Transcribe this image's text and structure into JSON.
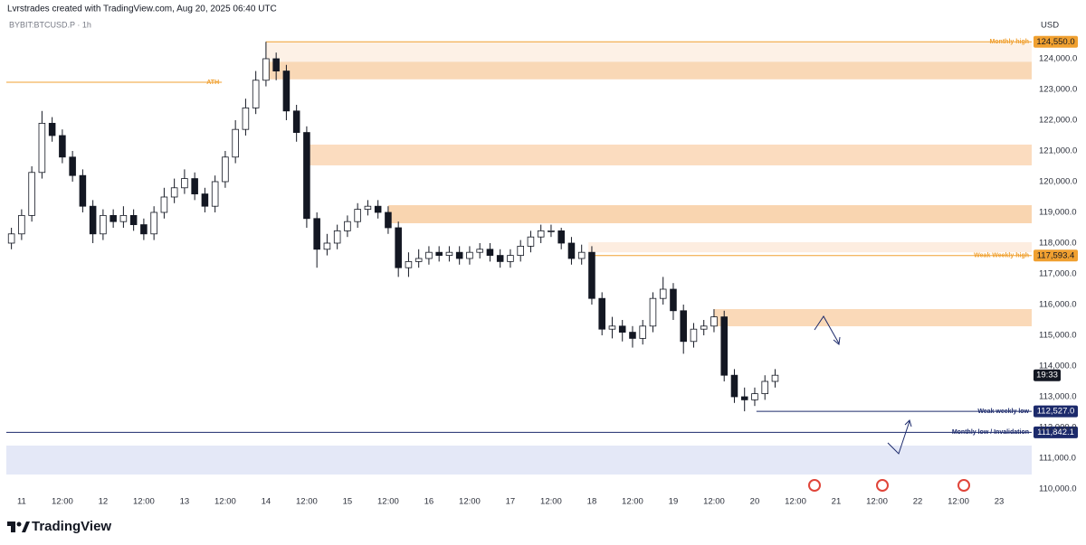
{
  "chart_data": {
    "type": "candlestick",
    "credit": "Lvrstrades created with TradingView.com, Aug 20, 2025 06:40 UTC",
    "title": "BYBIT:BTCUSD.P · 1h",
    "y_axis_label": "USD",
    "brand": "TradingView",
    "last_time_label": "19:33",
    "color_up": "#ffffff",
    "color_down": "#131722",
    "x": [
      -3,
      0,
      3,
      6,
      9,
      12,
      15,
      18,
      21,
      24,
      27,
      30,
      33,
      36,
      39,
      42,
      45,
      48,
      51,
      54,
      57,
      60,
      63,
      66,
      69,
      72,
      75,
      78,
      81,
      84,
      87,
      90,
      93,
      96,
      99,
      102,
      105,
      108,
      111,
      114,
      117,
      120,
      123,
      126,
      129,
      132,
      135,
      138,
      141,
      144,
      147,
      150,
      153,
      156,
      159,
      162,
      165,
      168,
      171,
      174,
      177,
      180,
      183,
      186,
      189,
      192,
      195,
      198,
      201,
      204,
      207,
      210,
      213,
      216,
      219,
      222
    ],
    "open": [
      118000,
      118300,
      118900,
      120300,
      121900,
      121500,
      120800,
      120200,
      119200,
      118300,
      118900,
      118700,
      118900,
      118600,
      118300,
      119000,
      119500,
      119800,
      120100,
      119600,
      119200,
      120000,
      120800,
      121700,
      122400,
      123300,
      124000,
      123600,
      122300,
      121600,
      118800,
      117800,
      118000,
      118400,
      118700,
      119100,
      119200,
      119000,
      118500,
      117200,
      117400,
      117500,
      117700,
      117600,
      117700,
      117500,
      117700,
      117800,
      117600,
      117400,
      117600,
      117900,
      118200,
      118400,
      118400,
      118000,
      117500,
      117700,
      116200,
      115200,
      115300,
      115100,
      114900,
      115300,
      116200,
      116500,
      115800,
      114800,
      115200,
      115300,
      115600,
      113700,
      113000,
      112900,
      113100,
      113500
    ],
    "high": [
      118500,
      119100,
      120500,
      122300,
      122100,
      121700,
      121000,
      120400,
      119400,
      119100,
      119100,
      119200,
      119100,
      118800,
      119200,
      119800,
      120100,
      120400,
      120300,
      119800,
      120200,
      121000,
      122000,
      122700,
      123600,
      124550,
      124200,
      123800,
      122500,
      121800,
      119000,
      118300,
      118600,
      118900,
      119300,
      119400,
      119400,
      119200,
      118700,
      117700,
      117800,
      117900,
      117900,
      117900,
      117900,
      117900,
      118000,
      118000,
      117800,
      117800,
      118100,
      118400,
      118600,
      118600,
      118500,
      118200,
      117950,
      117900,
      116400,
      115600,
      115500,
      115300,
      115500,
      116400,
      116900,
      116700,
      116000,
      115400,
      115500,
      115850,
      115800,
      113900,
      113300,
      113300,
      113700,
      113900
    ],
    "low": [
      117800,
      118100,
      118700,
      120100,
      121300,
      120600,
      120000,
      119000,
      118000,
      118100,
      118500,
      118500,
      118400,
      118100,
      118100,
      118800,
      119300,
      119600,
      119400,
      119000,
      119000,
      119800,
      120600,
      121500,
      122200,
      123100,
      123300,
      122000,
      121300,
      118500,
      117200,
      117600,
      117800,
      118200,
      118500,
      118900,
      118800,
      118300,
      116900,
      116900,
      117200,
      117300,
      117400,
      117400,
      117300,
      117300,
      117500,
      117400,
      117200,
      117200,
      117400,
      117700,
      118000,
      118200,
      117800,
      117300,
      117300,
      116000,
      115000,
      114900,
      114800,
      114600,
      114700,
      115100,
      116000,
      115500,
      114400,
      114600,
      115000,
      115100,
      113500,
      112800,
      112527,
      112700,
      112900,
      113300
    ],
    "close": [
      118300,
      118900,
      120300,
      121900,
      121500,
      120800,
      120200,
      119200,
      118300,
      118900,
      118700,
      118900,
      118600,
      118300,
      119000,
      119500,
      119800,
      120100,
      119600,
      119200,
      120000,
      120800,
      121700,
      122400,
      123300,
      124000,
      123600,
      122300,
      121600,
      118800,
      117800,
      118000,
      118400,
      118700,
      119100,
      119200,
      119000,
      118500,
      117200,
      117400,
      117500,
      117700,
      117600,
      117700,
      117500,
      117700,
      117800,
      117600,
      117400,
      117600,
      117900,
      118200,
      118400,
      118400,
      118000,
      117500,
      117700,
      116200,
      115200,
      115300,
      115100,
      114900,
      115300,
      116200,
      116500,
      115800,
      114800,
      115200,
      115300,
      115600,
      113700,
      113000,
      112900,
      113100,
      113500,
      113700
    ],
    "xlim": [
      -4.5,
      297.6
    ],
    "xticks": [
      {
        "value": 0,
        "label": "11"
      },
      {
        "value": 12,
        "label": "12:00"
      },
      {
        "value": 24,
        "label": "12"
      },
      {
        "value": 36,
        "label": "12:00"
      },
      {
        "value": 48,
        "label": "13"
      },
      {
        "value": 60,
        "label": "12:00"
      },
      {
        "value": 72,
        "label": "14"
      },
      {
        "value": 84,
        "label": "12:00"
      },
      {
        "value": 96,
        "label": "15"
      },
      {
        "value": 108,
        "label": "12:00"
      },
      {
        "value": 120,
        "label": "16"
      },
      {
        "value": 132,
        "label": "12:00"
      },
      {
        "value": 144,
        "label": "17"
      },
      {
        "value": 156,
        "label": "12:00"
      },
      {
        "value": 168,
        "label": "18"
      },
      {
        "value": 180,
        "label": "12:00"
      },
      {
        "value": 192,
        "label": "19"
      },
      {
        "value": 204,
        "label": "12:00"
      },
      {
        "value": 216,
        "label": "20"
      },
      {
        "value": 228,
        "label": "12:00"
      },
      {
        "value": 240,
        "label": "21"
      },
      {
        "value": 252,
        "label": "12:00"
      },
      {
        "value": 264,
        "label": "22"
      },
      {
        "value": 276,
        "label": "12:00"
      },
      {
        "value": 288,
        "label": "23"
      }
    ],
    "ylim": [
      109441,
      125323
    ],
    "yticks": [
      {
        "value": 110000,
        "label": "110,000.0"
      },
      {
        "value": 111000,
        "label": "111,000.0"
      },
      {
        "value": 112000,
        "label": "112,000.0"
      },
      {
        "value": 113000,
        "label": "113,000.0"
      },
      {
        "value": 114000,
        "label": "114,000.0"
      },
      {
        "value": 115000,
        "label": "115,000.0"
      },
      {
        "value": 116000,
        "label": "116,000.0"
      },
      {
        "value": 117000,
        "label": "117,000.0"
      },
      {
        "value": 118000,
        "label": "118,000.0"
      },
      {
        "value": 119000,
        "label": "119,000.0"
      },
      {
        "value": 120000,
        "label": "120,000.0"
      },
      {
        "value": 121000,
        "label": "121,000.0"
      },
      {
        "value": 122000,
        "label": "122,000.0"
      },
      {
        "value": 123000,
        "label": "123,000.0"
      },
      {
        "value": 124000,
        "label": "124,000.0"
      }
    ],
    "zones": [
      {
        "x_start": 72,
        "top": 124550,
        "bottom": 123900,
        "color": "#fdf1e6"
      },
      {
        "x_start": 72,
        "top": 123900,
        "bottom": 123330,
        "color": "#f9d8b6"
      },
      {
        "x_start": 84,
        "top": 121206,
        "bottom": 120530,
        "color": "#fbdcbf"
      },
      {
        "x_start": 108,
        "top": 119235,
        "bottom": 118647,
        "color": "#f9d5b0"
      },
      {
        "x_start": 167,
        "top": 118030,
        "bottom": 117700,
        "color": "#fdede0"
      },
      {
        "x_start": 204,
        "top": 115853,
        "bottom": 115294,
        "color": "#fad9b8"
      },
      {
        "x_start": -4.5,
        "top": 111412,
        "bottom": 110470,
        "color": "#e4e8f7"
      }
    ],
    "levels": [
      {
        "label": "ATH",
        "value": 123235,
        "x_start": -4.5,
        "x_end": 59,
        "color": "#f0a030"
      },
      {
        "label": "Monthly high",
        "value": 124550,
        "value_label": "124,550.0",
        "x_start": 72,
        "color": "#f0a030"
      },
      {
        "label": "Weak Weekly high",
        "value": 117593.4,
        "value_label": "117,593.4",
        "x_start": 168,
        "color": "#f0a030"
      },
      {
        "label": "Weak weekly low",
        "value": 112527,
        "value_label": "112,527.0",
        "x_start": 216.5,
        "color": "#1c2a6b"
      },
      {
        "label": "Monthly low / Invalidation",
        "value": 111842.1,
        "value_label": "111,842.1",
        "x_start": -4.5,
        "color": "#1c2a6b"
      }
    ]
  }
}
